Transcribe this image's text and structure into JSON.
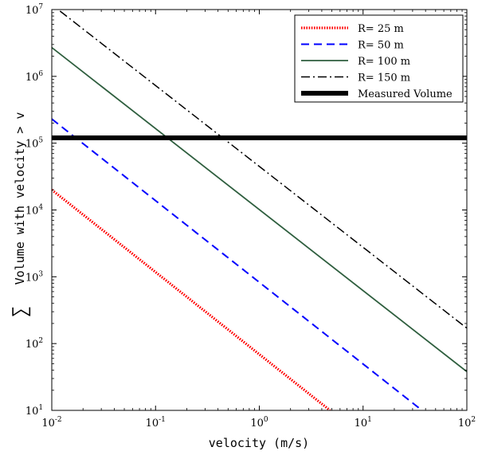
{
  "chart_data": {
    "type": "line",
    "xscale": "log",
    "yscale": "log",
    "xlim": [
      0.01,
      100
    ],
    "ylim": [
      10,
      10000000
    ],
    "xlabel": "velocity (m/s)",
    "ylabel": "Volume with velocity > v",
    "ylabel_symbol": "∑",
    "x_ticks": [
      {
        "value": 0.01,
        "base": "10",
        "exp": "-2"
      },
      {
        "value": 0.1,
        "base": "10",
        "exp": "-1"
      },
      {
        "value": 1,
        "base": "10",
        "exp": "0"
      },
      {
        "value": 10,
        "base": "10",
        "exp": "1"
      },
      {
        "value": 100,
        "base": "10",
        "exp": "2"
      }
    ],
    "y_ticks": [
      {
        "value": 10,
        "base": "10",
        "exp": "1"
      },
      {
        "value": 100,
        "base": "10",
        "exp": "2"
      },
      {
        "value": 1000,
        "base": "10",
        "exp": "3"
      },
      {
        "value": 10000,
        "base": "10",
        "exp": "4"
      },
      {
        "value": 100000,
        "base": "10",
        "exp": "5"
      },
      {
        "value": 1000000,
        "base": "10",
        "exp": "6"
      },
      {
        "value": 10000000,
        "base": "10",
        "exp": "7"
      }
    ],
    "legend_position": "top-right",
    "series": [
      {
        "name": "R= 25 m",
        "color": "#ff0000",
        "style": "dotted",
        "x": [
          0.01,
          4.8
        ],
        "y": [
          20000,
          10
        ]
      },
      {
        "name": "R= 50 m",
        "color": "#0000ff",
        "style": "dashed",
        "x": [
          0.01,
          37
        ],
        "y": [
          230000,
          10
        ]
      },
      {
        "name": "R= 100 m",
        "color": "#2e5e3e",
        "style": "solid",
        "x": [
          0.01,
          100
        ],
        "y": [
          2700000,
          38
        ]
      },
      {
        "name": "R= 150 m",
        "color": "#000000",
        "style": "dashdot",
        "x": [
          0.012,
          100
        ],
        "y": [
          9500000,
          170
        ]
      },
      {
        "name": "Measured Volume",
        "color": "#000000",
        "style": "thick",
        "x": [
          0.01,
          100
        ],
        "y": [
          120000,
          120000
        ]
      }
    ]
  }
}
